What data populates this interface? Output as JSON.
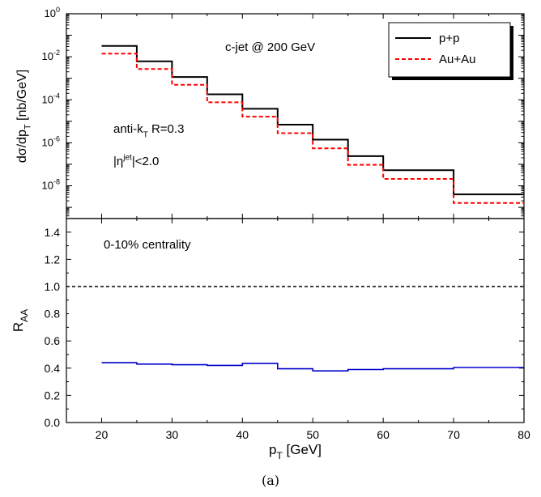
{
  "caption": "(a)",
  "chart_data": [
    {
      "type": "line",
      "panel": "top",
      "ylabel": "dσ/dp_T [nb/GeV]",
      "yscale": "log",
      "ylim": [
        3e-10,
        1
      ],
      "xlim": [
        15,
        80
      ],
      "y_tick_labels": [
        "10^0",
        "10^-2",
        "10^-4",
        "10^-6",
        "10^-8"
      ],
      "annotations": {
        "system": "c-jet @ 200 GeV",
        "algorithm": "anti-k_T R=0.3",
        "eta_cut": "|η^jet|<2.0"
      },
      "legend": {
        "position": "top-right",
        "entries": [
          "p+p",
          "Au+Au"
        ]
      },
      "series": [
        {
          "name": "p+p",
          "color": "#000000",
          "style": "solid",
          "bin_edges": [
            20,
            25,
            30,
            35,
            40,
            45,
            50,
            55,
            60,
            70,
            80
          ],
          "values": [
            0.032,
            0.0062,
            0.00115,
            0.00018,
            3.8e-05,
            7e-06,
            1.4e-06,
            2.4e-07,
            5.3e-08,
            4e-09
          ]
        },
        {
          "name": "Au+Au",
          "color": "#ff0000",
          "style": "dashed",
          "bin_edges": [
            20,
            25,
            30,
            35,
            40,
            45,
            50,
            55,
            60,
            70,
            80
          ],
          "values": [
            0.014,
            0.0027,
            0.0005,
            7.6e-05,
            1.65e-05,
            2.8e-06,
            5.5e-07,
            9.5e-08,
            2.1e-08,
            1.6e-09
          ]
        }
      ]
    },
    {
      "type": "line",
      "panel": "bottom",
      "ylabel": "R_AA",
      "xlabel": "p_T [GeV]",
      "ylim": [
        0,
        1.5
      ],
      "xlim": [
        15,
        80
      ],
      "x_ticks": [
        20,
        30,
        40,
        50,
        60,
        70,
        80
      ],
      "y_ticks": [
        0.0,
        0.2,
        0.4,
        0.6,
        0.8,
        1.0,
        1.2,
        1.4
      ],
      "annotations": {
        "centrality": "0-10% centrality"
      },
      "reference_line": {
        "y": 1.0,
        "style": "dashed",
        "color": "#000000"
      },
      "series": [
        {
          "color": "#0000cc",
          "style": "solid",
          "bin_edges": [
            20,
            25,
            30,
            35,
            40,
            45,
            50,
            55,
            60,
            70,
            80
          ],
          "values": [
            0.44,
            0.43,
            0.425,
            0.42,
            0.435,
            0.395,
            0.38,
            0.39,
            0.395,
            0.405
          ]
        }
      ]
    }
  ]
}
